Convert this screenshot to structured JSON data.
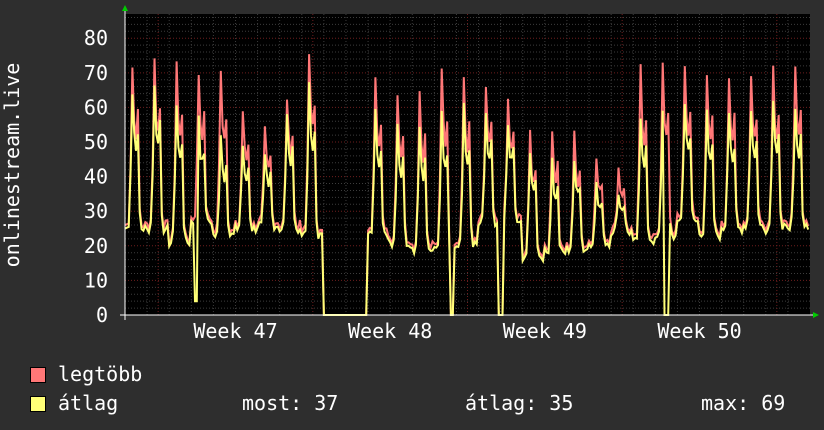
{
  "chart_data": {
    "type": "line",
    "ylabel": "onlinestream.live",
    "ylim": [
      0,
      87
    ],
    "y_ticks": [
      0,
      10,
      20,
      30,
      40,
      50,
      60,
      70,
      80
    ],
    "x_tick_labels": [
      "Week 47",
      "Week 48",
      "Week 49",
      "Week 50"
    ],
    "grid": true,
    "colors": {
      "background": "#2e2e2e",
      "plot_background": "#000000",
      "grid_minor": "#3c3c3c",
      "grid_major": "#6e1e1e",
      "axis": "#ffffff",
      "arrow": "#00cc00",
      "max_series": "#ff7777",
      "avg_series": "#ffff77"
    },
    "daily_peaks_max": [
      73,
      75,
      75,
      71,
      73,
      60,
      54,
      64,
      78,
      0,
      0,
      71,
      66,
      66,
      74,
      70,
      67,
      63,
      54,
      55,
      53,
      46,
      43,
      73,
      73,
      73,
      71,
      71,
      71,
      73,
      72
    ],
    "daily_peaks_avg": [
      66,
      68,
      62,
      57,
      52,
      50,
      47,
      58,
      67,
      0,
      0,
      60,
      56,
      56,
      60,
      61,
      60,
      57,
      49,
      45,
      46,
      38,
      36,
      59,
      61,
      63,
      60,
      60,
      59,
      62,
      62
    ],
    "daily_troughs": [
      26,
      26,
      22,
      28,
      24,
      26,
      27,
      26,
      24,
      0,
      0,
      24,
      22,
      20,
      20,
      21,
      27,
      28,
      18,
      19,
      20,
      22,
      25,
      22,
      24,
      28,
      24,
      26,
      27,
      26,
      27
    ],
    "dropouts": [
      {
        "series": "avg",
        "at_day": 3.2,
        "value": 4
      },
      {
        "series": "both",
        "from_day": 9.0,
        "to_day": 10.0,
        "value": 0
      },
      {
        "series": "both",
        "at_day": 14.8,
        "value": 0
      },
      {
        "series": "both",
        "at_day": 17.0,
        "value": 0
      },
      {
        "series": "avg",
        "at_day": 24.5,
        "value": 0
      }
    ],
    "series": [
      {
        "name": "legtöbb",
        "color": "#ff7777"
      },
      {
        "name": "átlag",
        "color": "#ffff77"
      }
    ]
  },
  "legend": {
    "max_label": "legtöbb",
    "avg_label": "átlag",
    "now": "most: 37",
    "average": "átlag: 35",
    "maximum": "max: 69"
  }
}
